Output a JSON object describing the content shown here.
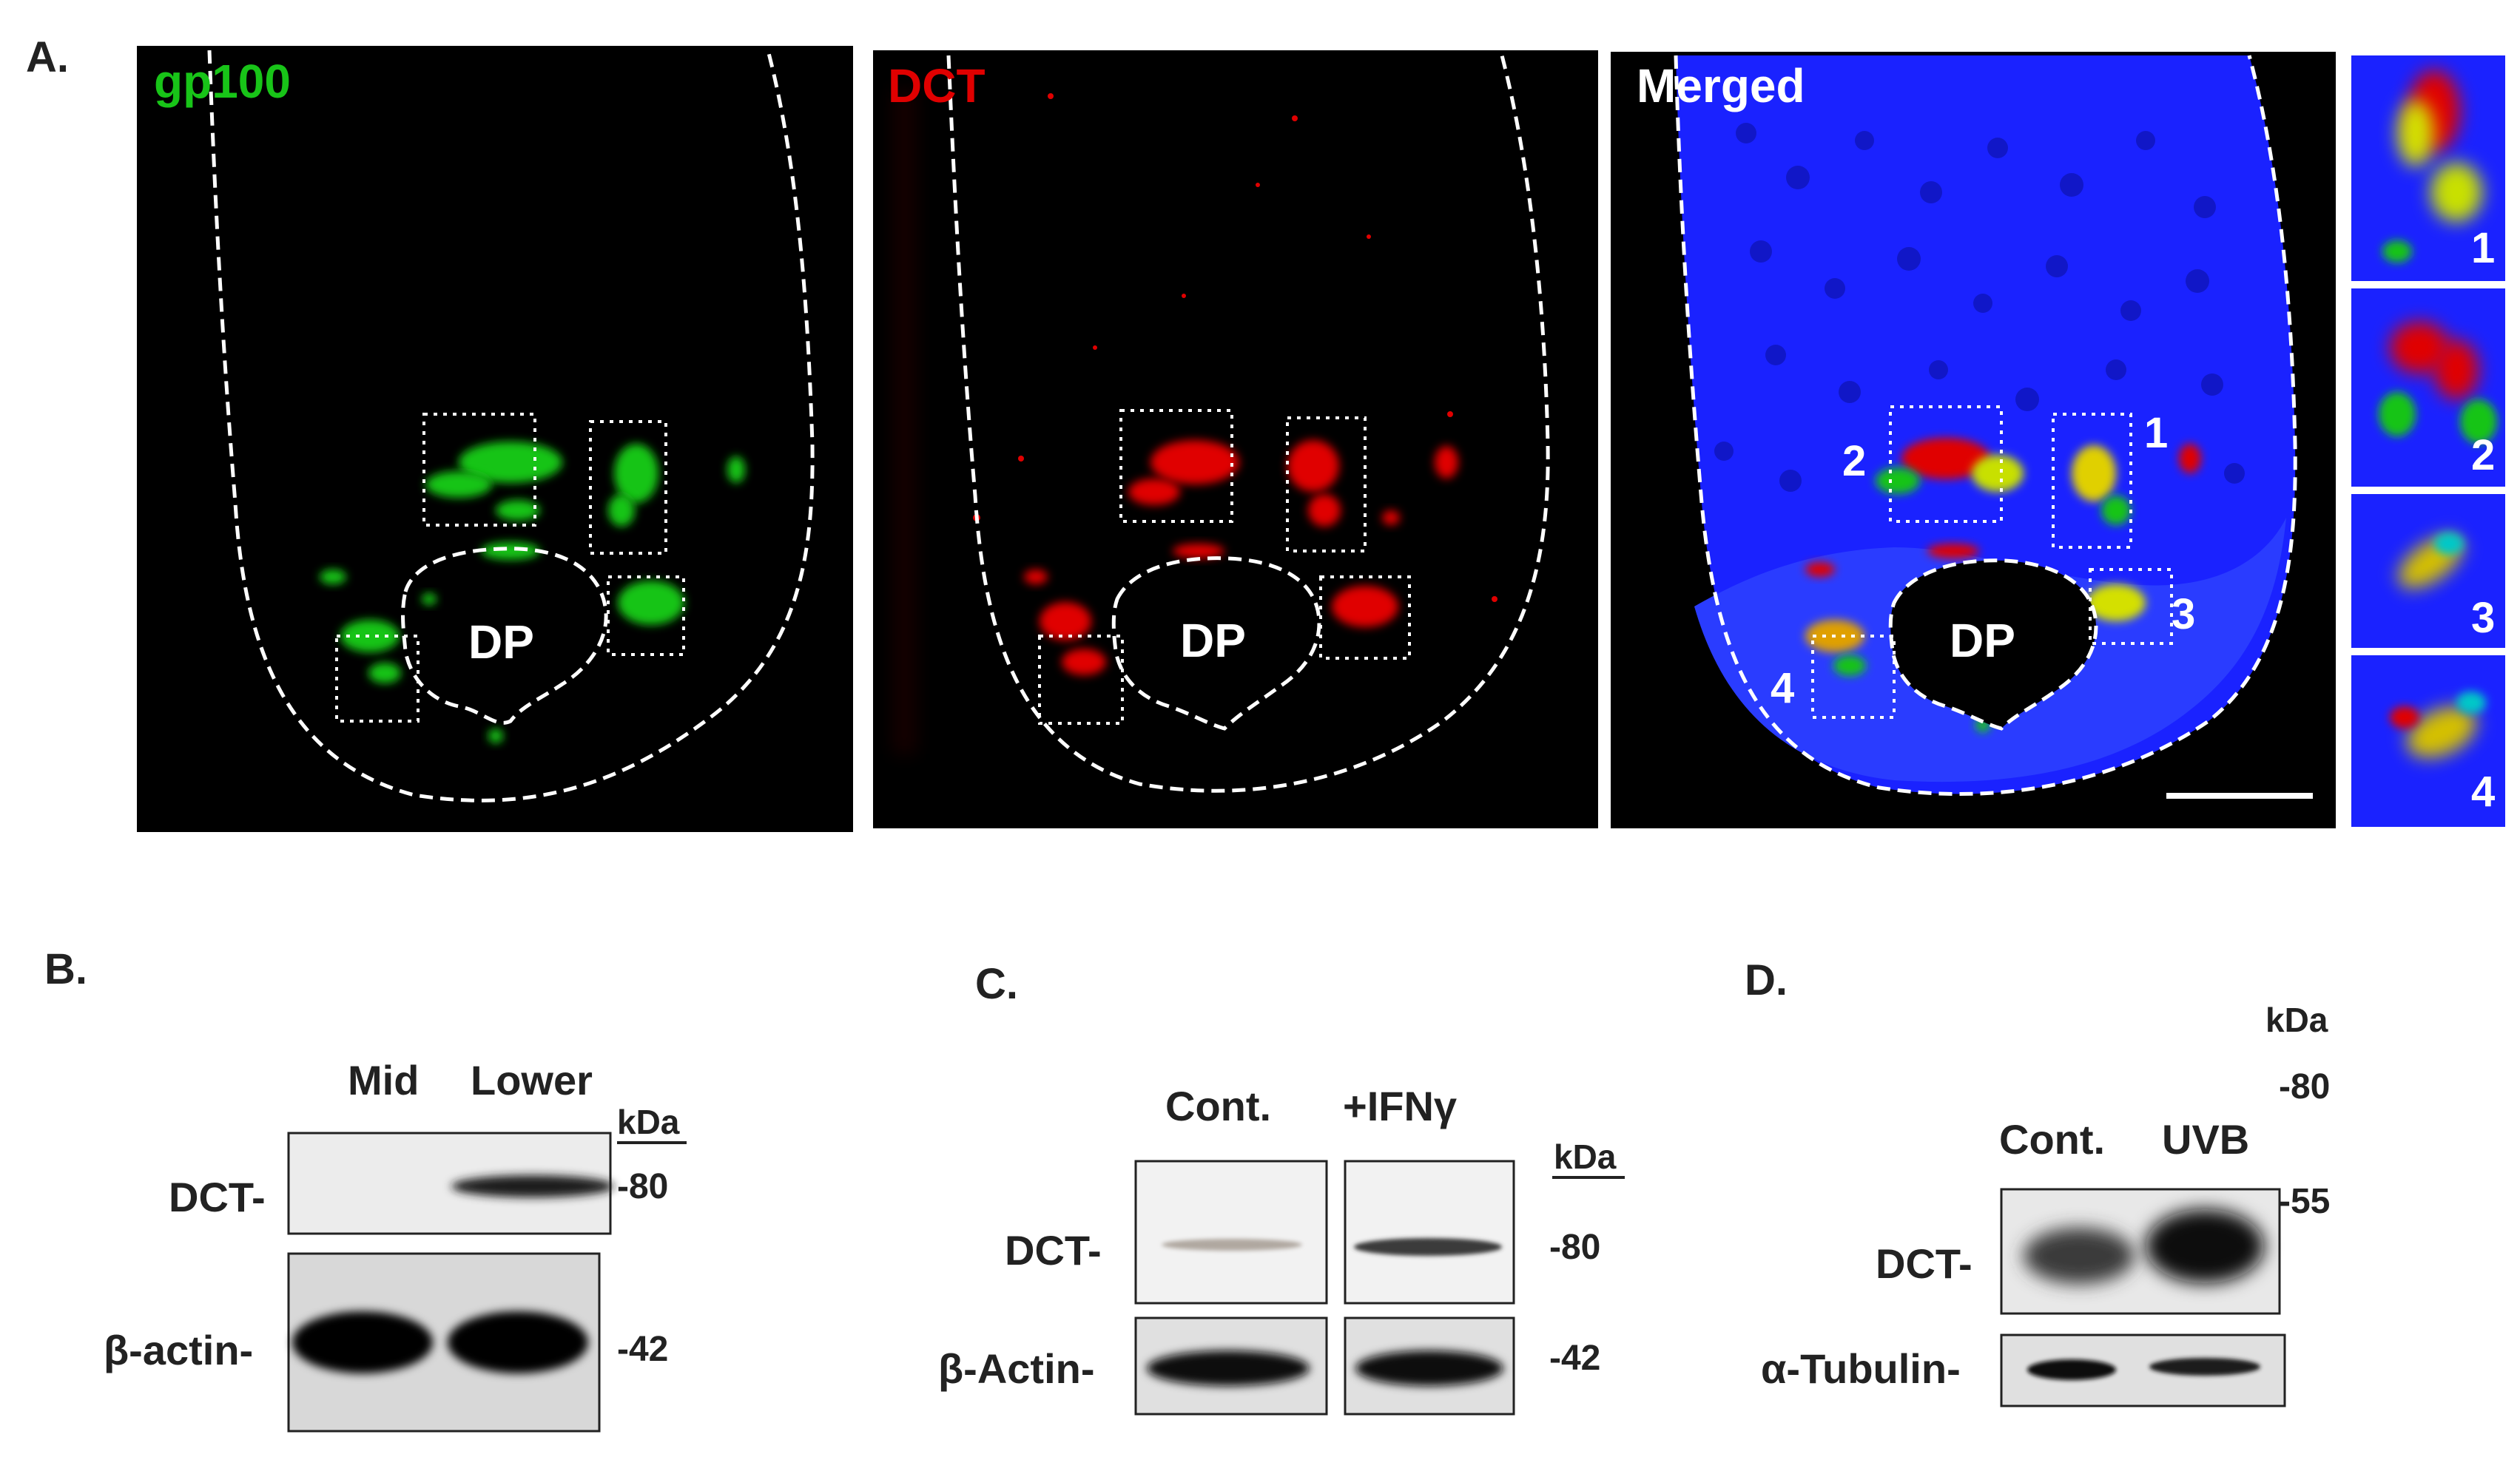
{
  "panel_A": {
    "letter": "A.",
    "channels": [
      {
        "label": "gp100",
        "color": "#18c418"
      },
      {
        "label": "DCT",
        "color": "#e00000"
      },
      {
        "label": "Merged",
        "color": "#ffffff"
      }
    ],
    "dp_label": "DP",
    "box_numbers": [
      "1",
      "2",
      "3",
      "4"
    ],
    "inset_numbers": [
      "1",
      "2",
      "3",
      "4"
    ]
  },
  "panel_B": {
    "letter": "B.",
    "lanes": [
      "Mid",
      "Lower"
    ],
    "kda_label": "kDa",
    "rows": [
      {
        "label": "DCT-",
        "mw": "-80"
      },
      {
        "label": "β-actin-",
        "mw": "-42"
      }
    ]
  },
  "panel_C": {
    "letter": "C.",
    "lanes": [
      "Cont.",
      "+IFNγ"
    ],
    "kda_label": "kDa",
    "rows": [
      {
        "label": "DCT-",
        "mw": "-80"
      },
      {
        "label": "β-Actin-",
        "mw": "-42"
      }
    ]
  },
  "panel_D": {
    "letter": "D.",
    "lanes": [
      "Cont.",
      "UVB"
    ],
    "kda_label": "kDa",
    "mw_markers": [
      "-80",
      "-55"
    ],
    "rows": [
      {
        "label": "DCT-"
      },
      {
        "label": "α-Tubulin-"
      }
    ]
  },
  "colors": {
    "nuclei_blue": "#1a22ff",
    "gp100_green": "#18c418",
    "dct_red": "#e00000",
    "background": "#000000"
  }
}
